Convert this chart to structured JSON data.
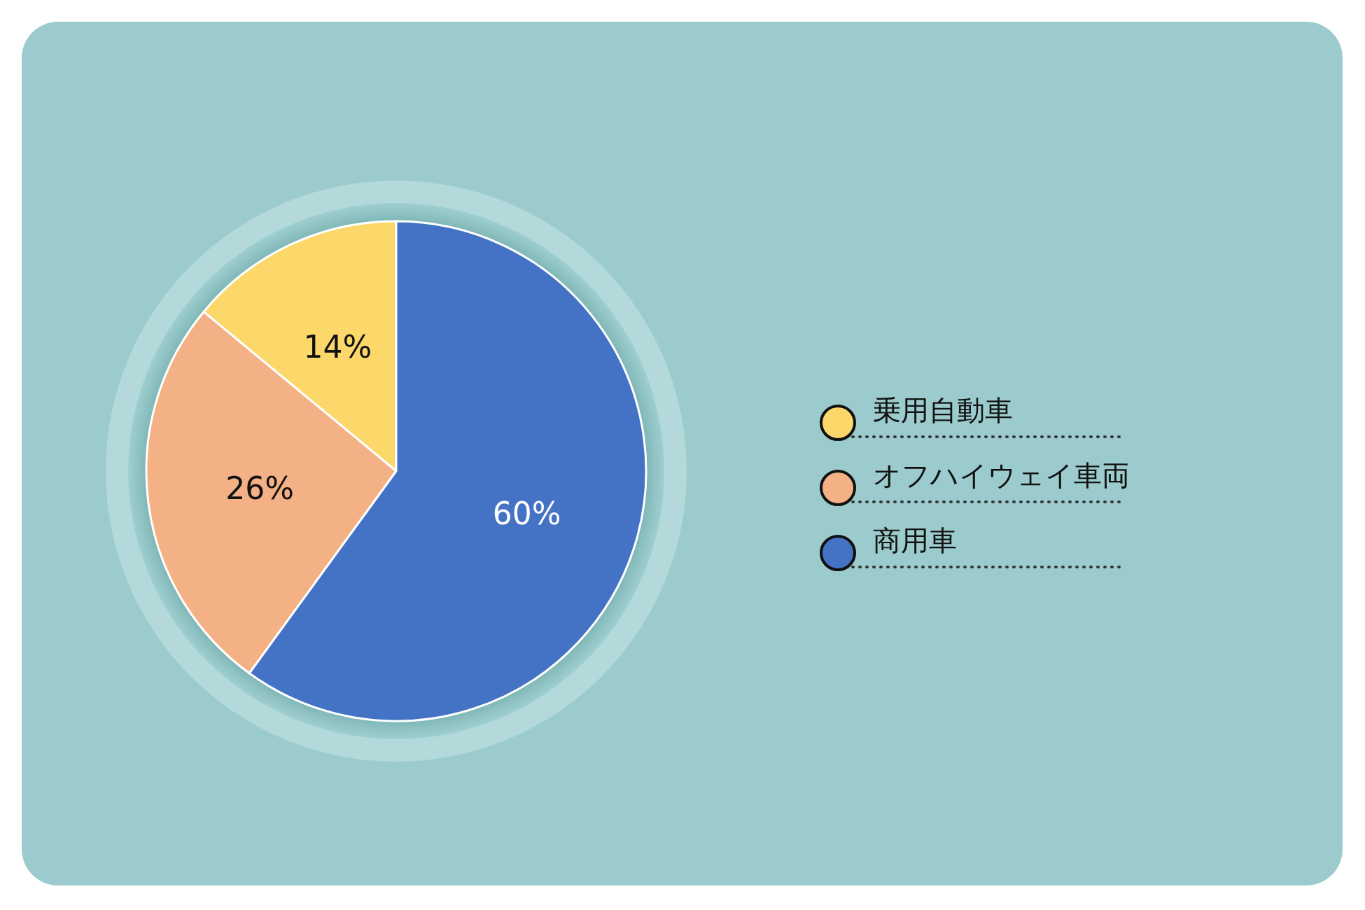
{
  "chart_data": {
    "type": "pie",
    "categories": [
      "乗用自動車",
      "オフハイウェイ車両",
      "商用車"
    ],
    "values": [
      14,
      26,
      60
    ],
    "colors": [
      "#fcd86a",
      "#f3b185",
      "#4472c4"
    ],
    "value_labels": [
      "14%",
      "26%",
      "60%"
    ],
    "legend": "right"
  }
}
